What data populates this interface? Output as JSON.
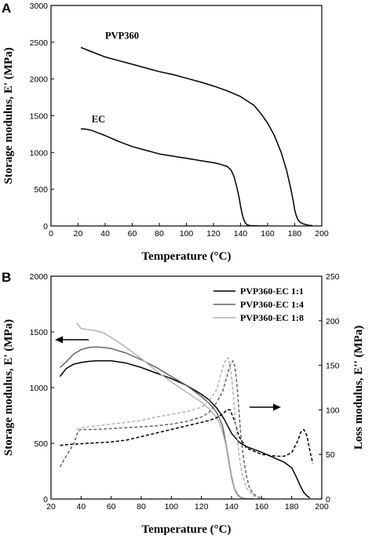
{
  "chart_data": [
    {
      "panel_label": "A",
      "type": "line",
      "xlabel": "Temperature (°C)",
      "ylabel": "Storage modulus, E' (MPa)",
      "xlim": [
        0,
        200
      ],
      "ylim": [
        0,
        3000
      ],
      "xticks": [
        0,
        20,
        40,
        60,
        80,
        100,
        120,
        140,
        160,
        180,
        200
      ],
      "yticks": [
        0,
        500,
        1000,
        1500,
        2000,
        2500,
        3000
      ],
      "grid": false,
      "series": [
        {
          "name": "PVP360",
          "color": "#000000",
          "dash": "solid",
          "x": [
            22,
            30,
            40,
            50,
            60,
            70,
            80,
            90,
            100,
            110,
            120,
            130,
            140,
            150,
            155,
            160,
            165,
            170,
            174,
            177,
            179,
            180,
            181,
            182,
            183,
            184,
            186,
            188,
            190,
            193
          ],
          "y": [
            2430,
            2370,
            2300,
            2250,
            2200,
            2150,
            2100,
            2060,
            2010,
            1960,
            1905,
            1840,
            1760,
            1640,
            1530,
            1400,
            1230,
            1000,
            760,
            520,
            330,
            220,
            150,
            100,
            70,
            50,
            30,
            20,
            10,
            5
          ]
        },
        {
          "name": "EC",
          "color": "#000000",
          "dash": "solid",
          "x": [
            22,
            25,
            30,
            40,
            50,
            60,
            70,
            80,
            90,
            100,
            110,
            120,
            125,
            130,
            133,
            135,
            137,
            139,
            140,
            141,
            142,
            143,
            144,
            145,
            147,
            150,
            155,
            160
          ],
          "y": [
            1320,
            1320,
            1300,
            1230,
            1150,
            1080,
            1030,
            980,
            950,
            920,
            890,
            860,
            840,
            810,
            760,
            680,
            550,
            380,
            270,
            180,
            110,
            60,
            30,
            15,
            5,
            2,
            0,
            0
          ]
        }
      ],
      "annotations": [
        {
          "text": "PVP360",
          "x": 40,
          "y": 2545
        },
        {
          "text": "EC",
          "x": 30,
          "y": 1410
        }
      ]
    },
    {
      "panel_label": "B",
      "type": "line",
      "xlabel": "Temperature (°C)",
      "ylabel": "Storage modulus, E' (MPa)",
      "y2label": "Loss modulus, E'' (MPa)",
      "xlim": [
        20,
        200
      ],
      "ylim": [
        0,
        2000
      ],
      "y2lim": [
        0,
        250
      ],
      "xticks": [
        20,
        40,
        60,
        80,
        100,
        120,
        140,
        160,
        180,
        200
      ],
      "yticks": [
        0,
        500,
        1000,
        1500,
        2000
      ],
      "y2ticks": [
        0,
        50,
        100,
        150,
        200,
        250
      ],
      "grid": false,
      "legend_position": "top-right",
      "legend": [
        "PVP360-EC 1:1",
        "PVP360-EC 1:4",
        "PVP360-EC 1:8"
      ],
      "series": [
        {
          "name": "PVP360-EC 1:1",
          "axis": "left",
          "color": "#000000",
          "dash": "solid",
          "x": [
            26,
            30,
            35,
            40,
            45,
            50,
            55,
            60,
            70,
            80,
            90,
            100,
            110,
            120,
            125,
            130,
            135,
            140,
            145,
            150,
            160,
            170,
            175,
            180,
            183,
            186,
            188,
            190,
            192
          ],
          "y": [
            1100,
            1170,
            1210,
            1225,
            1235,
            1240,
            1240,
            1240,
            1220,
            1180,
            1130,
            1080,
            1020,
            940,
            890,
            820,
            720,
            590,
            510,
            470,
            420,
            360,
            330,
            280,
            200,
            110,
            60,
            30,
            10
          ]
        },
        {
          "name": "PVP360-EC 1:4",
          "axis": "left",
          "color": "#666666",
          "dash": "solid",
          "x": [
            26,
            30,
            35,
            40,
            45,
            50,
            55,
            60,
            70,
            80,
            90,
            100,
            110,
            120,
            125,
            130,
            134,
            136,
            138,
            140,
            142,
            144,
            146,
            148,
            150,
            155
          ],
          "y": [
            1180,
            1230,
            1300,
            1340,
            1360,
            1365,
            1360,
            1350,
            1310,
            1250,
            1180,
            1100,
            1020,
            920,
            860,
            780,
            660,
            520,
            360,
            200,
            90,
            40,
            15,
            6,
            2,
            0
          ]
        },
        {
          "name": "PVP360-EC 1:8",
          "axis": "left",
          "color": "#b4b4b4",
          "dash": "solid",
          "x": [
            37,
            40,
            45,
            50,
            55,
            60,
            70,
            80,
            90,
            100,
            110,
            120,
            125,
            130,
            133,
            136,
            138,
            140,
            142,
            144,
            146,
            148,
            150
          ],
          "y": [
            1580,
            1530,
            1520,
            1510,
            1490,
            1450,
            1360,
            1260,
            1150,
            1050,
            960,
            870,
            810,
            730,
            650,
            500,
            340,
            180,
            80,
            30,
            10,
            3,
            0
          ]
        },
        {
          "name": "PVP360-EC 1:1 (E'')",
          "axis": "right",
          "color": "#000000",
          "dash": "dashed",
          "x": [
            26,
            30,
            40,
            50,
            60,
            70,
            80,
            90,
            100,
            110,
            120,
            125,
            130,
            134,
            137,
            139,
            142,
            145,
            150,
            160,
            170,
            175,
            180,
            184,
            186,
            188,
            190,
            192,
            194
          ],
          "y": [
            60,
            61,
            62,
            63,
            64,
            66,
            70,
            74,
            78,
            82,
            86,
            88,
            91,
            95,
            100,
            100,
            88,
            70,
            57,
            50,
            48,
            48,
            52,
            65,
            75,
            78,
            72,
            55,
            40
          ]
        },
        {
          "name": "PVP360-EC 1:4 (E'')",
          "axis": "right",
          "color": "#666666",
          "dash": "dashed",
          "x": [
            26,
            30,
            35,
            38,
            40,
            50,
            60,
            70,
            80,
            90,
            100,
            110,
            120,
            125,
            130,
            134,
            137,
            139,
            141,
            142,
            143,
            144,
            145,
            146,
            148,
            150,
            152,
            155,
            158,
            162
          ],
          "y": [
            36,
            48,
            62,
            76,
            78,
            78,
            79,
            80,
            81,
            82,
            84,
            87,
            92,
            97,
            108,
            120,
            138,
            150,
            155,
            150,
            138,
            120,
            98,
            75,
            45,
            25,
            12,
            5,
            2,
            0
          ]
        },
        {
          "name": "PVP360-EC 1:8 (E'')",
          "axis": "right",
          "color": "#b4b4b4",
          "dash": "dashed",
          "x": [
            37,
            40,
            50,
            60,
            70,
            80,
            90,
            100,
            110,
            120,
            125,
            130,
            133,
            135,
            137,
            138,
            139,
            140,
            141,
            142,
            143,
            145,
            147,
            150,
            155,
            160
          ],
          "y": [
            78,
            80,
            82,
            84,
            86,
            88,
            92,
            95,
            98,
            103,
            110,
            122,
            140,
            152,
            158,
            158,
            150,
            138,
            120,
            100,
            80,
            50,
            28,
            12,
            3,
            0
          ]
        }
      ]
    }
  ]
}
